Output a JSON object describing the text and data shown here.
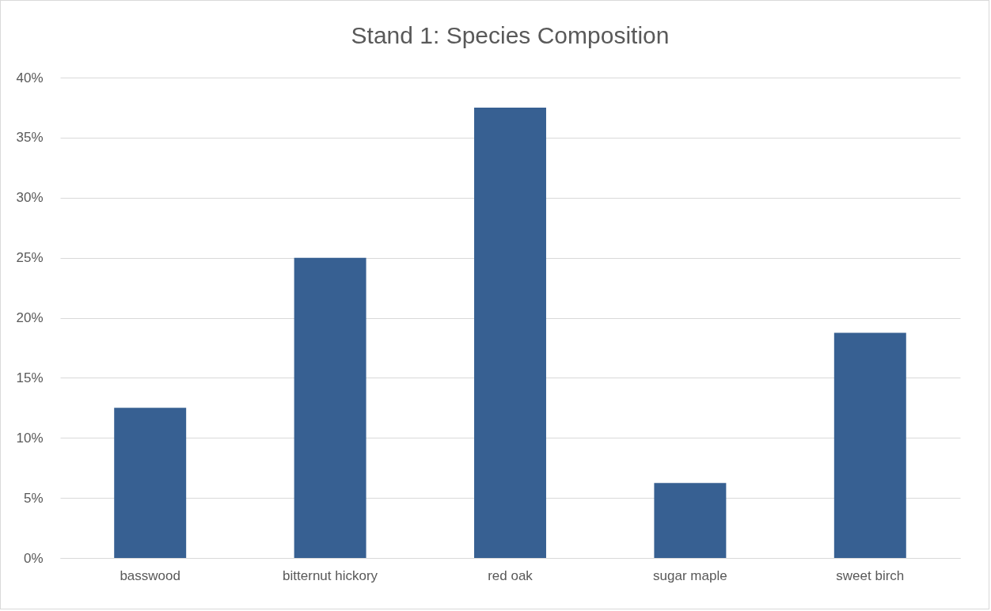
{
  "chart_data": {
    "type": "bar",
    "title": "Stand 1: Species Composition",
    "categories": [
      "basswood",
      "bitternut hickory",
      "red oak",
      "sugar maple",
      "sweet birch"
    ],
    "values": [
      12.5,
      25,
      37.5,
      6.25,
      18.75
    ],
    "color": "#376092",
    "ylim": [
      0,
      40
    ],
    "yticks": [
      {
        "value": 0,
        "label": "0%"
      },
      {
        "value": 5,
        "label": "5%"
      },
      {
        "value": 10,
        "label": "10%"
      },
      {
        "value": 15,
        "label": "15%"
      },
      {
        "value": 20,
        "label": "20%"
      },
      {
        "value": 25,
        "label": "25%"
      },
      {
        "value": 30,
        "label": "30%"
      },
      {
        "value": 35,
        "label": "35%"
      },
      {
        "value": 40,
        "label": "40%"
      }
    ],
    "grid": true
  }
}
